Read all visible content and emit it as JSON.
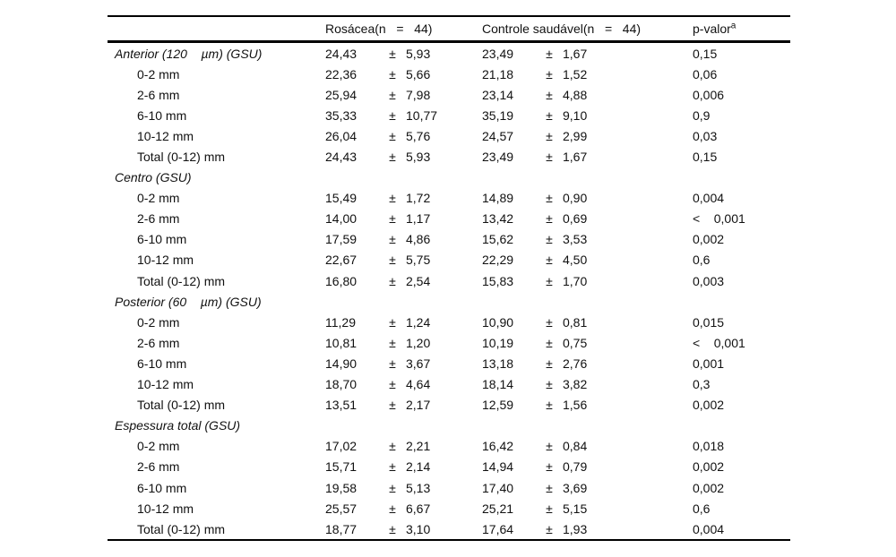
{
  "table": {
    "plus_minus": "±",
    "columns": {
      "group1": "Rosácea(n   =   44)",
      "group2": "Controle saudável(n   =   44)",
      "p": "p-valor",
      "p_sup": "a"
    },
    "rows": [
      {
        "label": "Anterior (120    µm) (GSU)",
        "section": true,
        "m1": "24,43",
        "s1": "5,93",
        "m2": "23,49",
        "s2": "1,67",
        "p": "0,15"
      },
      {
        "label": "0-2 mm",
        "section": false,
        "m1": "22,36",
        "s1": "5,66",
        "m2": "21,18",
        "s2": "1,52",
        "p": "0,06"
      },
      {
        "label": "2-6 mm",
        "section": false,
        "m1": "25,94",
        "s1": "7,98",
        "m2": "23,14",
        "s2": "4,88",
        "p": "0,006"
      },
      {
        "label": "6-10 mm",
        "section": false,
        "m1": "35,33",
        "s1": "10,77",
        "m2": "35,19",
        "s2": "9,10",
        "p": "0,9"
      },
      {
        "label": "10-12 mm",
        "section": false,
        "m1": "26,04",
        "s1": "5,76",
        "m2": "24,57",
        "s2": "2,99",
        "p": "0,03"
      },
      {
        "label": "Total (0-12) mm",
        "section": false,
        "m1": "24,43",
        "s1": "5,93",
        "m2": "23,49",
        "s2": "1,67",
        "p": "0,15"
      },
      {
        "label": "Centro (GSU)",
        "section": true
      },
      {
        "label": "0-2 mm",
        "section": false,
        "m1": "15,49",
        "s1": "1,72",
        "m2": "14,89",
        "s2": "0,90",
        "p": "0,004"
      },
      {
        "label": "2-6 mm",
        "section": false,
        "m1": "14,00",
        "s1": "1,17",
        "m2": "13,42",
        "s2": "0,69",
        "p": "<    0,001"
      },
      {
        "label": "6-10 mm",
        "section": false,
        "m1": "17,59",
        "s1": "4,86",
        "m2": "15,62",
        "s2": "3,53",
        "p": "0,002"
      },
      {
        "label": "10-12 mm",
        "section": false,
        "m1": "22,67",
        "s1": "5,75",
        "m2": "22,29",
        "s2": "4,50",
        "p": "0,6"
      },
      {
        "label": "Total (0-12) mm",
        "section": false,
        "m1": "16,80",
        "s1": "2,54",
        "m2": "15,83",
        "s2": "1,70",
        "p": "0,003"
      },
      {
        "label": "Posterior (60    µm) (GSU)",
        "section": true
      },
      {
        "label": "0-2 mm",
        "section": false,
        "m1": "11,29",
        "s1": "1,24",
        "m2": "10,90",
        "s2": "0,81",
        "p": "0,015"
      },
      {
        "label": "2-6 mm",
        "section": false,
        "m1": "10,81",
        "s1": "1,20",
        "m2": "10,19",
        "s2": "0,75",
        "p": "<    0,001"
      },
      {
        "label": "6-10 mm",
        "section": false,
        "m1": "14,90",
        "s1": "3,67",
        "m2": "13,18",
        "s2": "2,76",
        "p": "0,001"
      },
      {
        "label": "10-12 mm",
        "section": false,
        "m1": "18,70",
        "s1": "4,64",
        "m2": "18,14",
        "s2": "3,82",
        "p": "0,3"
      },
      {
        "label": "Total (0-12) mm",
        "section": false,
        "m1": "13,51",
        "s1": "2,17",
        "m2": "12,59",
        "s2": "1,56",
        "p": "0,002"
      },
      {
        "label": "Espessura total (GSU)",
        "section": true
      },
      {
        "label": "0-2 mm",
        "section": false,
        "m1": "17,02",
        "s1": "2,21",
        "m2": "16,42",
        "s2": "0,84",
        "p": "0,018"
      },
      {
        "label": "2-6 mm",
        "section": false,
        "m1": "15,71",
        "s1": "2,14",
        "m2": "14,94",
        "s2": "0,79",
        "p": "0,002"
      },
      {
        "label": "6-10 mm",
        "section": false,
        "m1": "19,58",
        "s1": "5,13",
        "m2": "17,40",
        "s2": "3,69",
        "p": "0,002"
      },
      {
        "label": "10-12 mm",
        "section": false,
        "m1": "25,57",
        "s1": "6,67",
        "m2": "25,21",
        "s2": "5,15",
        "p": "0,6"
      },
      {
        "label": "Total (0-12) mm",
        "section": false,
        "m1": "18,77",
        "s1": "3,10",
        "m2": "17,64",
        "s2": "1,93",
        "p": "0,004"
      }
    ]
  }
}
